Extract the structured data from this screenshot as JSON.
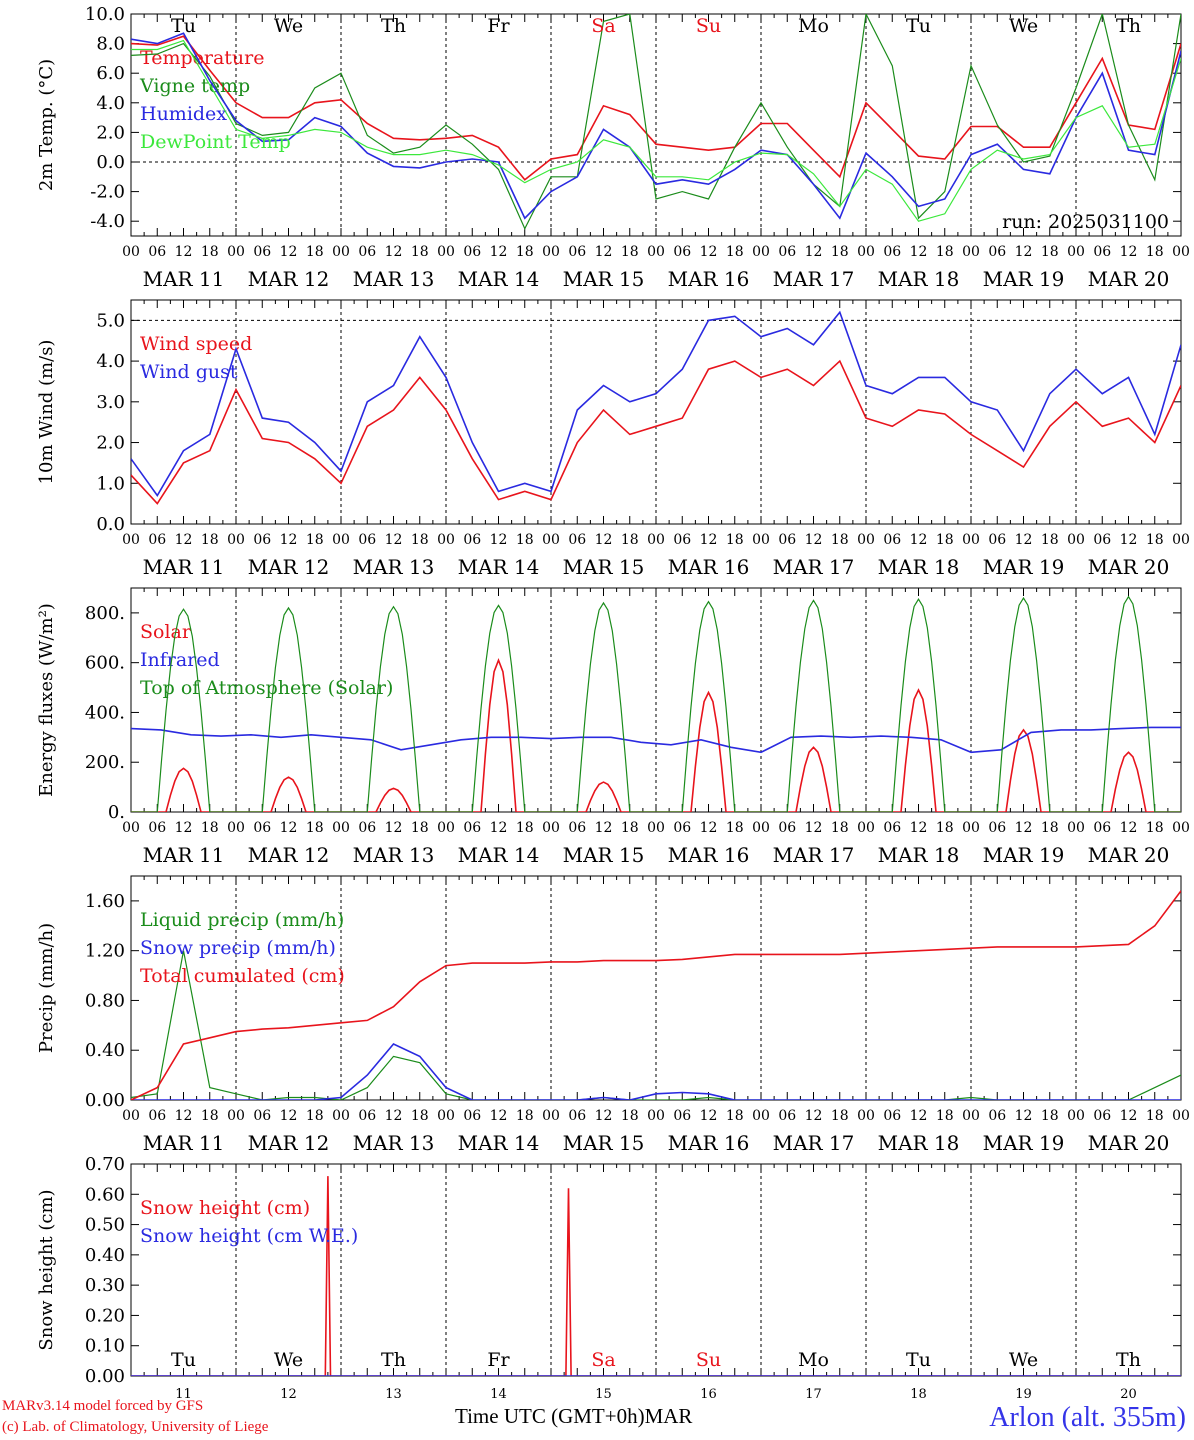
{
  "colors": {
    "red": "#e8141c",
    "darkgreen": "#1b8c1b",
    "blue": "#2a2ae0",
    "lightgreen": "#3ce83c",
    "black": "#000000"
  },
  "days": [
    "MAR 11",
    "MAR 12",
    "MAR 13",
    "MAR 14",
    "MAR 15",
    "MAR 16",
    "MAR 17",
    "MAR 18",
    "MAR 19",
    "MAR 20"
  ],
  "hour_ticks": [
    "00",
    "06",
    "12",
    "18"
  ],
  "weekdays": [
    {
      "label": "Tu",
      "weekend": false
    },
    {
      "label": "We",
      "weekend": false
    },
    {
      "label": "Th",
      "weekend": false
    },
    {
      "label": "Fr",
      "weekend": false
    },
    {
      "label": "Sa",
      "weekend": true
    },
    {
      "label": "Su",
      "weekend": true
    },
    {
      "label": "Mo",
      "weekend": false
    },
    {
      "label": "Tu",
      "weekend": false
    },
    {
      "label": "We",
      "weekend": false
    },
    {
      "label": "Th",
      "weekend": false
    }
  ],
  "bottom_day_numbers": [
    "11",
    "12",
    "13",
    "14",
    "15",
    "16",
    "17",
    "18",
    "19",
    "20"
  ],
  "footer": {
    "credit_line1": "MARv3.14 model forced by GFS",
    "credit_line2": "(c) Lab. of Climatology, University of Liege",
    "xaxis_label": "Time UTC (GMT+0h)",
    "month": "MAR",
    "station": "Arlon (alt. 355m)"
  },
  "chart_data": [
    {
      "type": "line",
      "ylabel": "2m Temp. (°C)",
      "ylim": [
        -5,
        10
      ],
      "yticks": [
        "10.0",
        "8.0",
        "6.0",
        "4.0",
        "2.0",
        "0.0",
        "-2.0",
        "-4.0"
      ],
      "ytick_values": [
        10,
        8,
        6,
        4,
        2,
        0,
        -2,
        -4
      ],
      "dashed_hlines": [
        0
      ],
      "annotation": "run: 2025031100",
      "x_hours": [
        0,
        6,
        12,
        18,
        24,
        30,
        36,
        42,
        48,
        54,
        60,
        66,
        72,
        78,
        84,
        90,
        96,
        102,
        108,
        114,
        120,
        126,
        132,
        138,
        144,
        150,
        156,
        162,
        168,
        174,
        180,
        186,
        192,
        198,
        204,
        210,
        216,
        222,
        228,
        234,
        240
      ],
      "series": [
        {
          "name": "Temperature",
          "color": "red",
          "values": [
            8.0,
            7.9,
            8.5,
            6.2,
            4.0,
            3.0,
            3.0,
            4.0,
            4.2,
            2.6,
            1.6,
            1.5,
            1.6,
            1.8,
            1.0,
            -1.2,
            0.2,
            0.5,
            3.8,
            3.2,
            1.2,
            1.0,
            0.8,
            1.0,
            2.6,
            2.6,
            0.8,
            -1.0,
            4.0,
            2.2,
            0.4,
            0.2,
            2.4,
            2.4,
            1.0,
            1.0,
            4.0,
            7.0,
            2.5,
            2.2,
            8.0
          ]
        },
        {
          "name": "Vigne temp",
          "color": "darkgreen",
          "values": [
            7.2,
            7.3,
            8.0,
            5.8,
            2.6,
            1.8,
            2.0,
            5.0,
            6.0,
            1.8,
            0.6,
            1.0,
            2.5,
            1.2,
            -0.5,
            -4.5,
            -1.0,
            -1.0,
            9.5,
            10.0,
            -2.5,
            -2.0,
            -2.5,
            1.0,
            4.0,
            1.0,
            -1.5,
            -3.0,
            10.0,
            6.5,
            -3.8,
            -2.0,
            6.5,
            2.5,
            0.0,
            0.4,
            5.0,
            10.0,
            2.5,
            -1.2,
            10.0
          ]
        },
        {
          "name": "Humidex",
          "color": "blue",
          "values": [
            8.3,
            8.0,
            8.7,
            5.5,
            2.8,
            1.4,
            1.5,
            3.0,
            2.4,
            0.6,
            -0.3,
            -0.4,
            0.0,
            0.2,
            0.0,
            -3.8,
            -2.0,
            -1.0,
            2.2,
            1.0,
            -1.5,
            -1.2,
            -1.5,
            -0.5,
            0.8,
            0.5,
            -1.5,
            -3.8,
            0.6,
            -1.0,
            -3.0,
            -2.5,
            0.5,
            1.2,
            -0.5,
            -0.8,
            3.0,
            6.0,
            0.8,
            0.5,
            7.5
          ]
        },
        {
          "name": "DewPoint Temp",
          "color": "lightgreen",
          "values": [
            7.6,
            7.6,
            8.2,
            5.2,
            2.2,
            1.6,
            1.8,
            2.2,
            2.0,
            1.0,
            0.5,
            0.5,
            0.8,
            0.5,
            -0.2,
            -1.4,
            -0.5,
            0.0,
            1.5,
            1.0,
            -1.0,
            -1.0,
            -1.2,
            0.0,
            0.6,
            0.5,
            -0.8,
            -3.0,
            -0.5,
            -1.5,
            -4.0,
            -3.5,
            -0.5,
            0.8,
            0.2,
            0.5,
            3.0,
            3.8,
            1.0,
            1.2,
            7.0
          ]
        }
      ]
    },
    {
      "type": "line",
      "ylabel": "10m Wind (m/s)",
      "ylim": [
        0,
        5.5
      ],
      "yticks": [
        "5.0",
        "4.0",
        "3.0",
        "2.0",
        "1.0",
        "0.0"
      ],
      "ytick_values": [
        5,
        4,
        3,
        2,
        1,
        0
      ],
      "dashed_hlines": [
        5
      ],
      "x_hours": [
        0,
        6,
        12,
        18,
        24,
        30,
        36,
        42,
        48,
        54,
        60,
        66,
        72,
        78,
        84,
        90,
        96,
        102,
        108,
        114,
        120,
        126,
        132,
        138,
        144,
        150,
        156,
        162,
        168,
        174,
        180,
        186,
        192,
        198,
        204,
        210,
        216,
        222,
        228,
        234,
        240
      ],
      "series": [
        {
          "name": "Wind speed",
          "color": "red",
          "values": [
            1.2,
            0.5,
            1.5,
            1.8,
            3.3,
            2.1,
            2.0,
            1.6,
            1.0,
            2.4,
            2.8,
            3.6,
            2.8,
            1.6,
            0.6,
            0.8,
            0.6,
            2.0,
            2.8,
            2.2,
            2.4,
            2.6,
            3.8,
            4.0,
            3.6,
            3.8,
            3.4,
            4.0,
            2.6,
            2.4,
            2.8,
            2.7,
            2.2,
            1.8,
            1.4,
            2.4,
            3.0,
            2.4,
            2.6,
            2.0,
            3.4
          ]
        },
        {
          "name": "Wind gust",
          "color": "blue",
          "values": [
            1.6,
            0.7,
            1.8,
            2.2,
            4.3,
            2.6,
            2.5,
            2.0,
            1.3,
            3.0,
            3.4,
            4.6,
            3.6,
            2.0,
            0.8,
            1.0,
            0.8,
            2.8,
            3.4,
            3.0,
            3.2,
            3.8,
            5.0,
            5.1,
            4.6,
            4.8,
            4.4,
            5.2,
            3.4,
            3.2,
            3.6,
            3.6,
            3.0,
            2.8,
            1.8,
            3.2,
            3.8,
            3.2,
            3.6,
            2.2,
            4.4
          ]
        }
      ]
    },
    {
      "type": "line",
      "ylabel": "Energy fluxes (W/m²)",
      "ylim": [
        0,
        900
      ],
      "yticks": [
        "800.",
        "600.",
        "400.",
        "200.",
        "0."
      ],
      "ytick_values": [
        800,
        600,
        400,
        200,
        0
      ],
      "dashed_hlines": [],
      "series": [
        {
          "name": "Solar",
          "color": "red",
          "daily_peaks": [
            175,
            140,
            95,
            610,
            120,
            480,
            260,
            490,
            330,
            240
          ]
        },
        {
          "name": "Infrared",
          "color": "blue",
          "values": [
            335,
            330,
            310,
            305,
            310,
            300,
            310,
            300,
            290,
            250,
            270,
            290,
            300,
            300,
            295,
            300,
            300,
            280,
            270,
            290,
            260,
            240,
            300,
            305,
            300,
            305,
            300,
            290,
            240,
            250,
            320,
            330,
            330,
            335,
            340,
            340
          ]
        },
        {
          "name": "Top of Atmosphere (Solar)",
          "color": "darkgreen",
          "daily_peaks": [
            815,
            820,
            825,
            830,
            840,
            845,
            850,
            855,
            860,
            865
          ]
        }
      ]
    },
    {
      "type": "line",
      "ylabel": "Precip (mm/h)",
      "ylim": [
        0,
        1.8
      ],
      "yticks": [
        "1.60",
        "1.20",
        "0.80",
        "0.40",
        "0.00"
      ],
      "ytick_values": [
        1.6,
        1.2,
        0.8,
        0.4,
        0.0
      ],
      "dashed_hlines": [],
      "x_hours": [
        0,
        6,
        12,
        18,
        24,
        30,
        36,
        42,
        48,
        54,
        60,
        66,
        72,
        78,
        84,
        90,
        96,
        102,
        108,
        114,
        120,
        126,
        132,
        138,
        144,
        150,
        156,
        162,
        168,
        174,
        180,
        186,
        192,
        198,
        204,
        210,
        216,
        222,
        228,
        234,
        240
      ],
      "series": [
        {
          "name": "Liquid precip (mm/h)",
          "color": "darkgreen",
          "values": [
            0.02,
            0.05,
            1.2,
            0.1,
            0.05,
            0.0,
            0.02,
            0.02,
            0.0,
            0.1,
            0.35,
            0.3,
            0.05,
            0.0,
            0.0,
            0.0,
            0.0,
            0.0,
            0.02,
            0.0,
            0.0,
            0.0,
            0.02,
            0.0,
            0.0,
            0.0,
            0.0,
            0.0,
            0.0,
            0.0,
            0.0,
            0.0,
            0.02,
            0.0,
            0.0,
            0.0,
            0.0,
            0.0,
            0.0,
            0.1,
            0.2
          ]
        },
        {
          "name": "Snow precip (mm/h)",
          "color": "blue",
          "values": [
            0.0,
            0.0,
            0.0,
            0.0,
            0.0,
            0.0,
            0.0,
            0.0,
            0.02,
            0.2,
            0.45,
            0.35,
            0.1,
            0.0,
            0.0,
            0.0,
            0.0,
            0.0,
            0.02,
            0.0,
            0.05,
            0.06,
            0.05,
            0.0,
            0.0,
            0.0,
            0.0,
            0.0,
            0.0,
            0.0,
            0.0,
            0.0,
            0.0,
            0.0,
            0.0,
            0.0,
            0.0,
            0.0,
            0.0,
            0.0,
            0.0
          ]
        },
        {
          "name": "Total cumulated (cm)",
          "color": "red",
          "values": [
            0.0,
            0.1,
            0.45,
            0.5,
            0.55,
            0.57,
            0.58,
            0.6,
            0.62,
            0.64,
            0.75,
            0.95,
            1.08,
            1.1,
            1.1,
            1.1,
            1.11,
            1.11,
            1.12,
            1.12,
            1.12,
            1.13,
            1.15,
            1.17,
            1.17,
            1.17,
            1.17,
            1.17,
            1.18,
            1.19,
            1.2,
            1.21,
            1.22,
            1.23,
            1.23,
            1.23,
            1.23,
            1.24,
            1.25,
            1.4,
            1.68
          ]
        }
      ]
    },
    {
      "type": "line",
      "ylabel": "Snow height (cm)",
      "ylim": [
        0,
        0.7
      ],
      "yticks": [
        "0.70",
        "0.60",
        "0.50",
        "0.40",
        "0.30",
        "0.20",
        "0.10",
        "0.00"
      ],
      "ytick_values": [
        0.7,
        0.6,
        0.5,
        0.4,
        0.3,
        0.2,
        0.1,
        0.0
      ],
      "dashed_hlines": [],
      "series": [
        {
          "name": "Snow height (cm)",
          "color": "red",
          "spikes": [
            {
              "hour": 45,
              "value": 0.66
            },
            {
              "hour": 100,
              "value": 0.62
            }
          ]
        },
        {
          "name": "Snow height (cm W.E.)",
          "color": "blue",
          "spikes": []
        }
      ]
    }
  ]
}
